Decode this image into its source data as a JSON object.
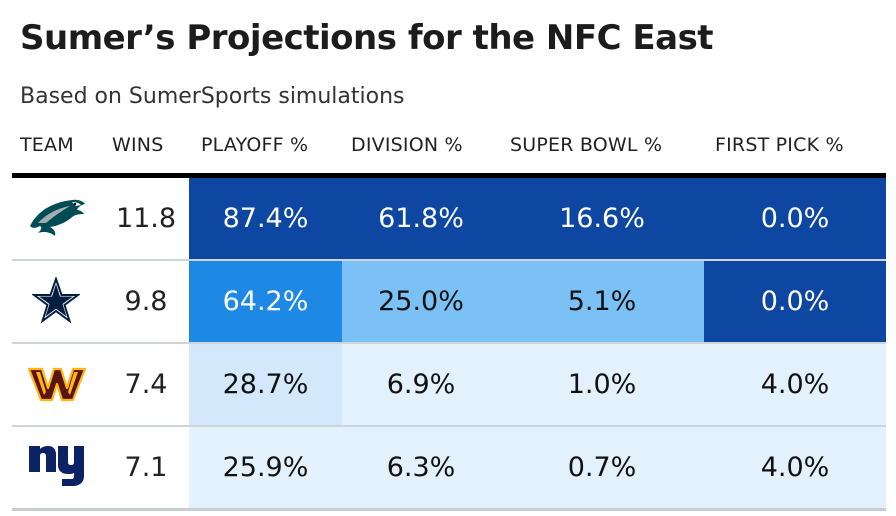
{
  "title": "Sumer’s Projections for the NFC East",
  "subtitle": "Based on SumerSports simulations",
  "columns": {
    "team": "TEAM",
    "wins": "WINS",
    "playoff": "PLAYOFF %",
    "division": "DIVISION %",
    "super_bowl": "SUPER BOWL %",
    "first_pick": "FIRST PICK %"
  },
  "rows": [
    {
      "team_icon": "eagles-logo-icon",
      "wins": "11.8",
      "playoff": "87.4%",
      "division": "61.8%",
      "super_bowl": "16.6%",
      "first_pick": "0.0%"
    },
    {
      "team_icon": "cowboys-star-logo-icon",
      "wins": "9.8",
      "playoff": "64.2%",
      "division": "25.0%",
      "super_bowl": "5.1%",
      "first_pick": "0.0%"
    },
    {
      "team_icon": "commanders-w-logo-icon",
      "wins": "7.4",
      "playoff": "28.7%",
      "division": "6.9%",
      "super_bowl": "1.0%",
      "first_pick": "4.0%"
    },
    {
      "team_icon": "giants-ny-logo-icon",
      "wins": "7.1",
      "playoff": "25.9%",
      "division": "6.3%",
      "super_bowl": "0.7%",
      "first_pick": "4.0%"
    }
  ],
  "colors": {
    "dark_blue": "#0d47a1",
    "mid_blue": "#1e88e5",
    "light_blue": "#7cc1f5",
    "pale_blue": "#d3e9fb",
    "palest_blue": "#e3f1fc",
    "eagles_green": "#004c54",
    "cowboys_navy": "#041e42",
    "commanders_burgundy": "#5a1414",
    "commanders_gold": "#ffb612",
    "giants_blue": "#0b2265"
  },
  "chart_data": {
    "type": "table",
    "title": "Sumer’s Projections for the NFC East",
    "subtitle": "Based on SumerSports simulations",
    "columns": [
      "TEAM",
      "WINS",
      "PLAYOFF %",
      "DIVISION %",
      "SUPER BOWL %",
      "FIRST PICK %"
    ],
    "rows": [
      [
        "Eagles",
        11.8,
        87.4,
        61.8,
        16.6,
        0.0
      ],
      [
        "Cowboys",
        9.8,
        64.2,
        25.0,
        5.1,
        0.0
      ],
      [
        "Commanders",
        7.4,
        28.7,
        6.9,
        1.0,
        4.0
      ],
      [
        "Giants",
        7.1,
        25.9,
        6.3,
        0.7,
        4.0
      ]
    ],
    "cell_shading": [
      [
        null,
        null,
        "dark_blue",
        "dark_blue",
        "dark_blue",
        "dark_blue"
      ],
      [
        null,
        null,
        "mid_blue",
        "light_blue",
        "light_blue",
        "dark_blue"
      ],
      [
        null,
        null,
        "pale_blue",
        "palest_blue",
        "palest_blue",
        "palest_blue"
      ],
      [
        null,
        null,
        "palest_blue",
        "palest_blue",
        "palest_blue",
        "palest_blue"
      ]
    ]
  }
}
